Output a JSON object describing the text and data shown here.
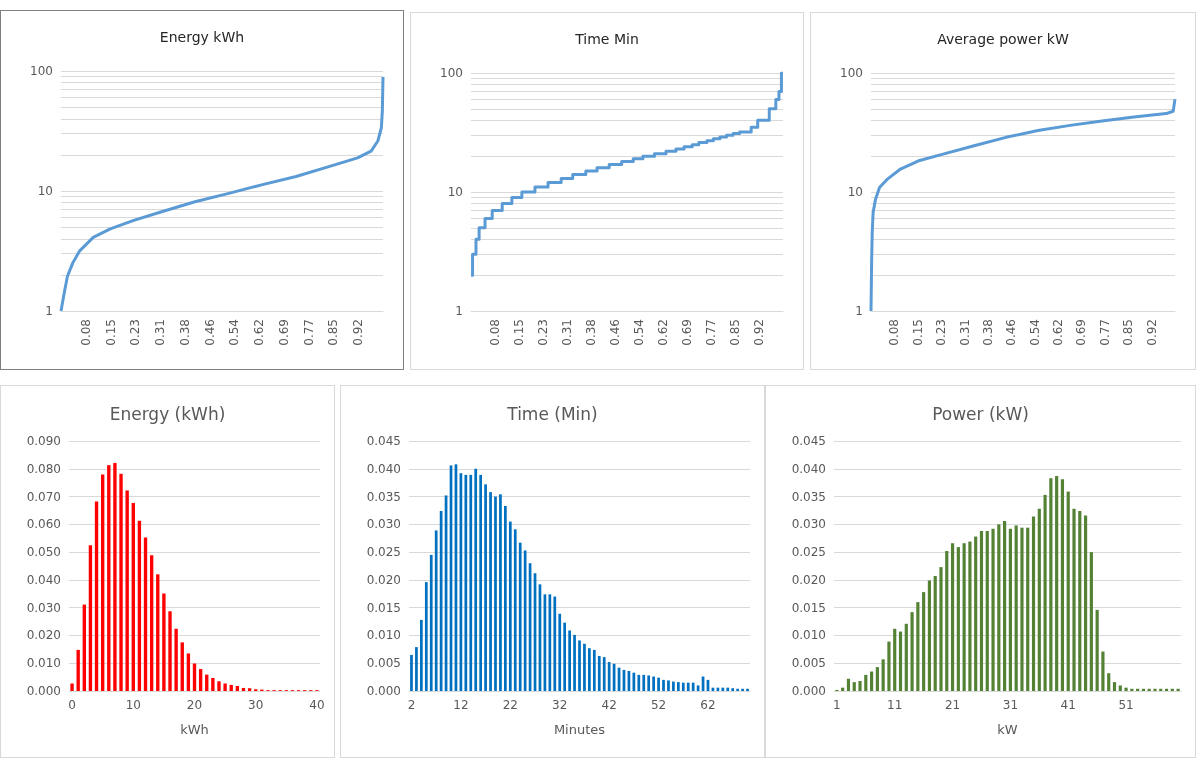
{
  "chart_data": [
    {
      "type": "line",
      "title": "Energy kWh",
      "log": "y",
      "grid": "y",
      "xlim": [
        0,
        1
      ],
      "ylim": [
        1,
        100
      ],
      "xticks": [
        {
          "value": 0.0769,
          "label": "0.08"
        },
        {
          "value": 0.1538,
          "label": "0.15"
        },
        {
          "value": 0.2308,
          "label": "0.23"
        },
        {
          "value": 0.3077,
          "label": "0.31"
        },
        {
          "value": 0.3846,
          "label": "0.38"
        },
        {
          "value": 0.4615,
          "label": "0.46"
        },
        {
          "value": 0.5385,
          "label": "0.54"
        },
        {
          "value": 0.6154,
          "label": "0.62"
        },
        {
          "value": 0.6923,
          "label": "0.69"
        },
        {
          "value": 0.7692,
          "label": "0.77"
        },
        {
          "value": 0.8462,
          "label": "0.85"
        },
        {
          "value": 0.9231,
          "label": "0.92"
        }
      ],
      "yticks": [
        1,
        {
          "value": 2,
          "label": null
        },
        {
          "value": 3,
          "label": null
        },
        {
          "value": 4,
          "label": null
        },
        {
          "value": 5,
          "label": null
        },
        {
          "value": 6,
          "label": null
        },
        {
          "value": 7,
          "label": null
        },
        {
          "value": 8,
          "label": null
        },
        {
          "value": 9,
          "label": null
        },
        10,
        {
          "value": 20,
          "label": null
        },
        {
          "value": 30,
          "label": null
        },
        {
          "value": 40,
          "label": null
        },
        {
          "value": 50,
          "label": null
        },
        {
          "value": 60,
          "label": null
        },
        {
          "value": 70,
          "label": null
        },
        {
          "value": 80,
          "label": null
        },
        {
          "value": 90,
          "label": null
        },
        100
      ],
      "series": [
        {
          "color": "#5b9bd5",
          "x": [
            0,
            0.01,
            0.02,
            0.037,
            0.058,
            0.1,
            0.153,
            0.226,
            0.31,
            0.416,
            0.521,
            0.626,
            0.73,
            0.837,
            0.921,
            0.963,
            0.984,
            0.995,
            0.998,
            1
          ],
          "values": [
            1,
            1.41,
            1.95,
            2.53,
            3.17,
            4.11,
            4.83,
            5.69,
            6.69,
            8.13,
            9.56,
            11.3,
            13.2,
            16.1,
            18.9,
            21.5,
            26.1,
            33.8,
            46.8,
            89
          ]
        }
      ]
    },
    {
      "type": "step",
      "title": "Time Min",
      "log": "y",
      "grid": "y",
      "xlim": [
        0,
        1
      ],
      "ylim": [
        1,
        100
      ],
      "xticks": [
        {
          "value": 0.0769,
          "label": "0.08"
        },
        {
          "value": 0.1538,
          "label": "0.15"
        },
        {
          "value": 0.2308,
          "label": "0.23"
        },
        {
          "value": 0.3077,
          "label": "0.31"
        },
        {
          "value": 0.3846,
          "label": "0.38"
        },
        {
          "value": 0.4615,
          "label": "0.46"
        },
        {
          "value": 0.5385,
          "label": "0.54"
        },
        {
          "value": 0.6154,
          "label": "0.62"
        },
        {
          "value": 0.6923,
          "label": "0.69"
        },
        {
          "value": 0.7692,
          "label": "0.77"
        },
        {
          "value": 0.8462,
          "label": "0.85"
        },
        {
          "value": 0.9231,
          "label": "0.92"
        }
      ],
      "yticks": [
        1,
        {
          "value": 2,
          "label": null
        },
        {
          "value": 3,
          "label": null
        },
        {
          "value": 4,
          "label": null
        },
        {
          "value": 5,
          "label": null
        },
        {
          "value": 6,
          "label": null
        },
        {
          "value": 7,
          "label": null
        },
        {
          "value": 8,
          "label": null
        },
        {
          "value": 9,
          "label": null
        },
        10,
        {
          "value": 20,
          "label": null
        },
        {
          "value": 30,
          "label": null
        },
        {
          "value": 40,
          "label": null
        },
        {
          "value": 50,
          "label": null
        },
        {
          "value": 60,
          "label": null
        },
        {
          "value": 70,
          "label": null
        },
        {
          "value": 80,
          "label": null
        },
        {
          "value": 90,
          "label": null
        },
        100
      ],
      "series": [
        {
          "color": "#5b9bd5",
          "x": [
            0,
            0.005,
            0.016,
            0.026,
            0.045,
            0.068,
            0.1,
            0.131,
            0.163,
            0.205,
            0.247,
            0.289,
            0.326,
            0.368,
            0.404,
            0.443,
            0.483,
            0.52,
            0.551,
            0.588,
            0.625,
            0.657,
            0.683,
            0.709,
            0.73,
            0.756,
            0.777,
            0.798,
            0.819,
            0.84,
            0.861,
            0.898,
            0.919,
            0.956,
            0.977,
            0.987,
            0.995,
            1
          ],
          "values": [
            2,
            3,
            4,
            5,
            6,
            7,
            8,
            9,
            10,
            11,
            12,
            13,
            14,
            15,
            16,
            17,
            18,
            19,
            20,
            21,
            22,
            23,
            24,
            25,
            26,
            27,
            28,
            29,
            30,
            31,
            32,
            35,
            40,
            50,
            60,
            70,
            100,
            100
          ]
        }
      ]
    },
    {
      "type": "line",
      "title": "Average power kW",
      "log": "y",
      "grid": "y",
      "xlim": [
        0,
        1
      ],
      "ylim": [
        1,
        100
      ],
      "xticks": [
        {
          "value": 0.0769,
          "label": "0.08"
        },
        {
          "value": 0.1538,
          "label": "0.15"
        },
        {
          "value": 0.2308,
          "label": "0.23"
        },
        {
          "value": 0.3077,
          "label": "0.31"
        },
        {
          "value": 0.3846,
          "label": "0.38"
        },
        {
          "value": 0.4615,
          "label": "0.46"
        },
        {
          "value": 0.5385,
          "label": "0.54"
        },
        {
          "value": 0.6154,
          "label": "0.62"
        },
        {
          "value": 0.6923,
          "label": "0.69"
        },
        {
          "value": 0.7692,
          "label": "0.77"
        },
        {
          "value": 0.8462,
          "label": "0.85"
        },
        {
          "value": 0.9231,
          "label": "0.92"
        }
      ],
      "yticks": [
        1,
        {
          "value": 2,
          "label": null
        },
        {
          "value": 3,
          "label": null
        },
        {
          "value": 4,
          "label": null
        },
        {
          "value": 5,
          "label": null
        },
        {
          "value": 6,
          "label": null
        },
        {
          "value": 7,
          "label": null
        },
        {
          "value": 8,
          "label": null
        },
        {
          "value": 9,
          "label": null
        },
        10,
        {
          "value": 20,
          "label": null
        },
        {
          "value": 30,
          "label": null
        },
        {
          "value": 40,
          "label": null
        },
        {
          "value": 50,
          "label": null
        },
        {
          "value": 60,
          "label": null
        },
        {
          "value": 70,
          "label": null
        },
        {
          "value": 80,
          "label": null
        },
        {
          "value": 90,
          "label": null
        },
        100
      ],
      "series": [
        {
          "color": "#5b9bd5",
          "x": [
            0,
            0.002,
            0.004,
            0.007,
            0.015,
            0.028,
            0.055,
            0.097,
            0.16,
            0.234,
            0.339,
            0.444,
            0.549,
            0.655,
            0.76,
            0.865,
            0.971,
            0.994,
            1
          ],
          "values": [
            1,
            2.55,
            4.57,
            6.74,
            8.7,
            10.9,
            12.9,
            15.6,
            18.4,
            20.7,
            24.5,
            28.8,
            32.9,
            36.3,
            39.5,
            42.7,
            45.6,
            47.7,
            60.3
          ]
        }
      ]
    },
    {
      "type": "bar",
      "title": "Energy (kWh)",
      "xlabel": "kWh",
      "grid": "y",
      "xlim": [
        -0.5,
        40.5
      ],
      "xticks": [
        0,
        10,
        20,
        30,
        40
      ],
      "ylim": [
        0,
        0.09
      ],
      "yticks": [
        {
          "value": 0,
          "label": "0.000"
        },
        {
          "value": 0.01,
          "label": "0.010"
        },
        {
          "value": 0.02,
          "label": "0.020"
        },
        {
          "value": 0.03,
          "label": "0.030"
        },
        {
          "value": 0.04,
          "label": "0.040"
        },
        {
          "value": 0.05,
          "label": "0.050"
        },
        {
          "value": 0.06,
          "label": "0.060"
        },
        {
          "value": 0.07,
          "label": "0.070"
        },
        {
          "value": 0.08,
          "label": "0.080"
        },
        {
          "value": 0.09,
          "label": "0.090"
        }
      ],
      "series": [
        {
          "color": "#ff0000",
          "x": [
            0,
            1,
            2,
            3,
            4,
            5,
            6,
            7,
            8,
            9,
            10,
            11,
            12,
            13,
            14,
            15,
            16,
            17,
            18,
            19,
            20,
            21,
            22,
            23,
            24,
            25,
            26,
            27,
            28,
            29,
            30,
            31,
            32,
            33,
            34,
            35,
            36,
            37,
            38,
            39,
            40
          ],
          "values": [
            0.0027,
            0.0148,
            0.0311,
            0.0525,
            0.0682,
            0.0779,
            0.0813,
            0.0821,
            0.0782,
            0.0722,
            0.0677,
            0.0613,
            0.0553,
            0.0489,
            0.042,
            0.0351,
            0.0287,
            0.0224,
            0.0175,
            0.0135,
            0.0099,
            0.0079,
            0.0059,
            0.0047,
            0.0035,
            0.0027,
            0.0022,
            0.0018,
            0.0011,
            0.001,
            0.0006,
            0.0005,
            0.0003,
            0.0003,
            0.0003,
            0.0003,
            0.0003,
            0.0003,
            0.0003,
            0.0003,
            0.0003
          ]
        }
      ]
    },
    {
      "type": "bar",
      "title": "Time (Min)",
      "xlabel": "Minutes",
      "grid": "y",
      "xlim": [
        1.5,
        70.5
      ],
      "xticks": [
        2,
        12,
        22,
        32,
        42,
        52,
        62
      ],
      "ylim": [
        0,
        0.045
      ],
      "yticks": [
        {
          "value": 0,
          "label": "0.000"
        },
        {
          "value": 0.005,
          "label": "0.005"
        },
        {
          "value": 0.01,
          "label": "0.010"
        },
        {
          "value": 0.015,
          "label": "0.015"
        },
        {
          "value": 0.02,
          "label": "0.020"
        },
        {
          "value": 0.025,
          "label": "0.025"
        },
        {
          "value": 0.03,
          "label": "0.030"
        },
        {
          "value": 0.035,
          "label": "0.035"
        },
        {
          "value": 0.04,
          "label": "0.040"
        },
        {
          "value": 0.045,
          "label": "0.045"
        }
      ],
      "series": [
        {
          "color": "#0070c0",
          "x": [
            2,
            3,
            4,
            5,
            6,
            7,
            8,
            9,
            10,
            11,
            12,
            13,
            14,
            15,
            16,
            17,
            18,
            19,
            20,
            21,
            22,
            23,
            24,
            25,
            26,
            27,
            28,
            29,
            30,
            31,
            32,
            33,
            34,
            35,
            36,
            37,
            38,
            39,
            40,
            41,
            42,
            43,
            44,
            45,
            46,
            47,
            48,
            49,
            50,
            51,
            52,
            53,
            54,
            55,
            56,
            57,
            58,
            59,
            60,
            61,
            62,
            63,
            64,
            65,
            66,
            67,
            68,
            69,
            70
          ],
          "values": [
            0.0065,
            0.0079,
            0.0128,
            0.0196,
            0.0245,
            0.0289,
            0.0324,
            0.0352,
            0.0406,
            0.0408,
            0.0392,
            0.0389,
            0.0389,
            0.04,
            0.0389,
            0.0372,
            0.0358,
            0.035,
            0.0354,
            0.0333,
            0.0305,
            0.0291,
            0.0267,
            0.0253,
            0.023,
            0.0212,
            0.0192,
            0.0174,
            0.0174,
            0.017,
            0.0139,
            0.0123,
            0.0109,
            0.0101,
            0.0091,
            0.0085,
            0.0077,
            0.0074,
            0.0063,
            0.0061,
            0.0052,
            0.0049,
            0.0042,
            0.0038,
            0.0036,
            0.0033,
            0.0029,
            0.0029,
            0.0028,
            0.0026,
            0.0024,
            0.002,
            0.0019,
            0.0017,
            0.0016,
            0.0015,
            0.0015,
            0.0015,
            0.001,
            0.0026,
            0.002,
            0.0006,
            0.0006,
            0.0006,
            0.0006,
            0.0005,
            0.0004,
            0.0004,
            0.0004
          ]
        }
      ]
    },
    {
      "type": "bar",
      "title": "Power (kW)",
      "xlabel": "kW",
      "grid": "y",
      "xlim": [
        0.5,
        60.5
      ],
      "xticks": [
        1,
        11,
        21,
        31,
        41,
        51
      ],
      "ylim": [
        0,
        0.045
      ],
      "yticks": [
        {
          "value": 0,
          "label": "0.000"
        },
        {
          "value": 0.005,
          "label": "0.005"
        },
        {
          "value": 0.01,
          "label": "0.010"
        },
        {
          "value": 0.015,
          "label": "0.015"
        },
        {
          "value": 0.02,
          "label": "0.020"
        },
        {
          "value": 0.025,
          "label": "0.025"
        },
        {
          "value": 0.03,
          "label": "0.030"
        },
        {
          "value": 0.035,
          "label": "0.035"
        },
        {
          "value": 0.04,
          "label": "0.040"
        },
        {
          "value": 0.045,
          "label": "0.045"
        }
      ],
      "series": [
        {
          "color": "#548235",
          "x": [
            1,
            2,
            3,
            4,
            5,
            6,
            7,
            8,
            9,
            10,
            11,
            12,
            13,
            14,
            15,
            16,
            17,
            18,
            19,
            20,
            21,
            22,
            23,
            24,
            25,
            26,
            27,
            28,
            29,
            30,
            31,
            32,
            33,
            34,
            35,
            36,
            37,
            38,
            39,
            40,
            41,
            42,
            43,
            44,
            45,
            46,
            47,
            48,
            49,
            50,
            51,
            52,
            53,
            54,
            55,
            56,
            57,
            58,
            59,
            60
          ],
          "values": [
            0.0002,
            0.0006,
            0.0022,
            0.0016,
            0.0018,
            0.0029,
            0.0035,
            0.0043,
            0.0057,
            0.0089,
            0.0112,
            0.0107,
            0.0121,
            0.0142,
            0.016,
            0.0178,
            0.0199,
            0.0207,
            0.0223,
            0.0252,
            0.0266,
            0.0259,
            0.0266,
            0.0269,
            0.0278,
            0.0288,
            0.0288,
            0.0292,
            0.03,
            0.0306,
            0.0292,
            0.0298,
            0.0294,
            0.0294,
            0.0314,
            0.0328,
            0.0353,
            0.0383,
            0.0387,
            0.0381,
            0.0359,
            0.0328,
            0.0324,
            0.0316,
            0.025,
            0.0146,
            0.0071,
            0.0032,
            0.0016,
            0.001,
            0.0006,
            0.0004,
            0.0004,
            0.0004,
            0.0004,
            0.0004,
            0.0004,
            0.0004,
            0.0004,
            0.0004
          ]
        }
      ]
    }
  ]
}
